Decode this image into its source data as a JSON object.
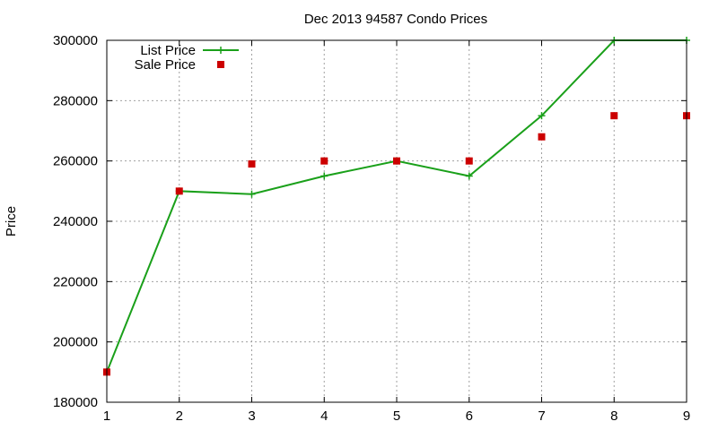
{
  "chart_data": {
    "type": "line",
    "title": "Dec 2013 94587 Condo Prices",
    "xlabel": "",
    "ylabel": "Price",
    "x": [
      1,
      2,
      3,
      4,
      5,
      6,
      7,
      8,
      9
    ],
    "xlim": [
      1,
      9
    ],
    "ylim": [
      180000,
      300000
    ],
    "xticks": [
      1,
      2,
      3,
      4,
      5,
      6,
      7,
      8,
      9
    ],
    "yticks": [
      180000,
      200000,
      220000,
      240000,
      260000,
      280000,
      300000
    ],
    "grid": true,
    "legend_position": "top-left",
    "series": [
      {
        "name": "List Price",
        "style": "line-with-plus-markers",
        "color": "#1aa01a",
        "values": [
          190000,
          250000,
          249000,
          255000,
          260000,
          255000,
          275000,
          300000,
          300000
        ]
      },
      {
        "name": "Sale Price",
        "style": "square-points",
        "color": "#cc0000",
        "values": [
          190000,
          250000,
          259000,
          260000,
          260000,
          260000,
          268000,
          275000,
          275000
        ]
      }
    ]
  }
}
